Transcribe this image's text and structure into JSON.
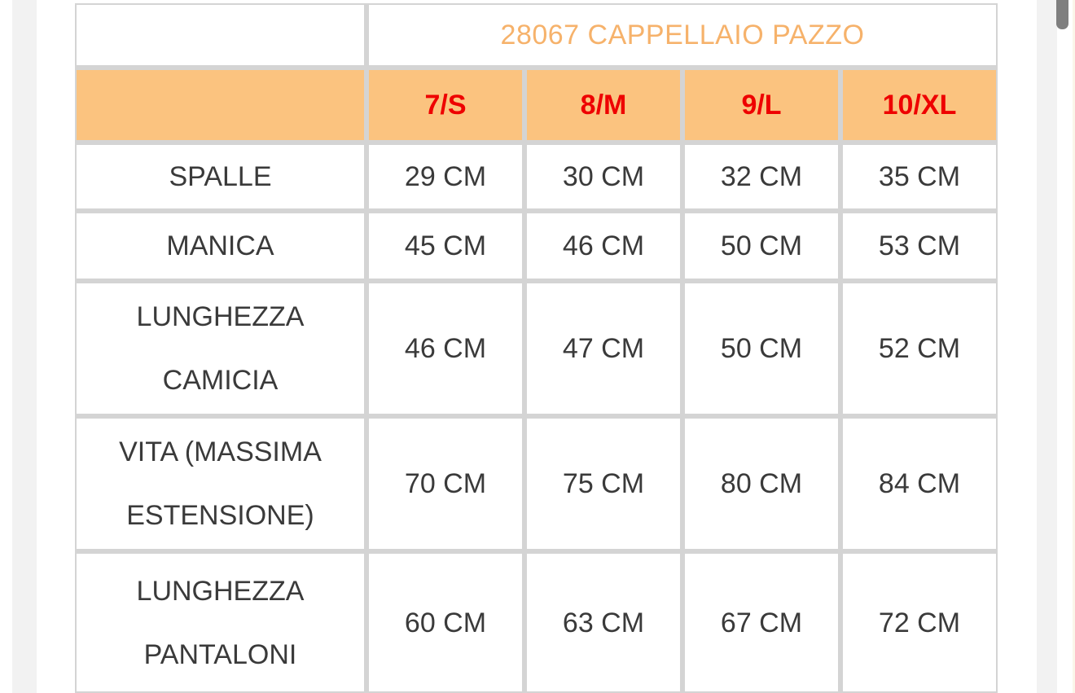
{
  "chart_data": {
    "type": "table",
    "title": "28067 CAPPELLAIO PAZZO",
    "columns": [
      "",
      "7/S",
      "8/M",
      "9/L",
      "10/XL"
    ],
    "rows": [
      {
        "label": "SPALLE",
        "values": [
          "29 CM",
          "30 CM",
          "32 CM",
          "35 CM"
        ]
      },
      {
        "label": "MANICA",
        "values": [
          "45 CM",
          "46 CM",
          "50 CM",
          "53 CM"
        ]
      },
      {
        "label": "LUNGHEZZA CAMICIA",
        "values": [
          "46 CM",
          "47 CM",
          "50 CM",
          "52 CM"
        ]
      },
      {
        "label": "VITA (MASSIMA ESTENSIONE)",
        "values": [
          "70 CM",
          "75 CM",
          "80 CM",
          "84 CM"
        ]
      },
      {
        "label": "LUNGHEZZA PANTALONI",
        "values": [
          "60 CM",
          "63 CM",
          "67 CM",
          "72 CM"
        ]
      }
    ],
    "units": "CM",
    "layout_hints": {
      "header_row_background": "#fbc37f",
      "grid_gap_color": "#d4d4d4",
      "title_text_color": "#f6b26b",
      "size_text_color": "#ee0000",
      "cell_text_color": "#3a3a3a",
      "gridlines": "on"
    }
  },
  "scrollbar": {
    "thumb_color": "#7f7f7f",
    "position": "top-right"
  }
}
